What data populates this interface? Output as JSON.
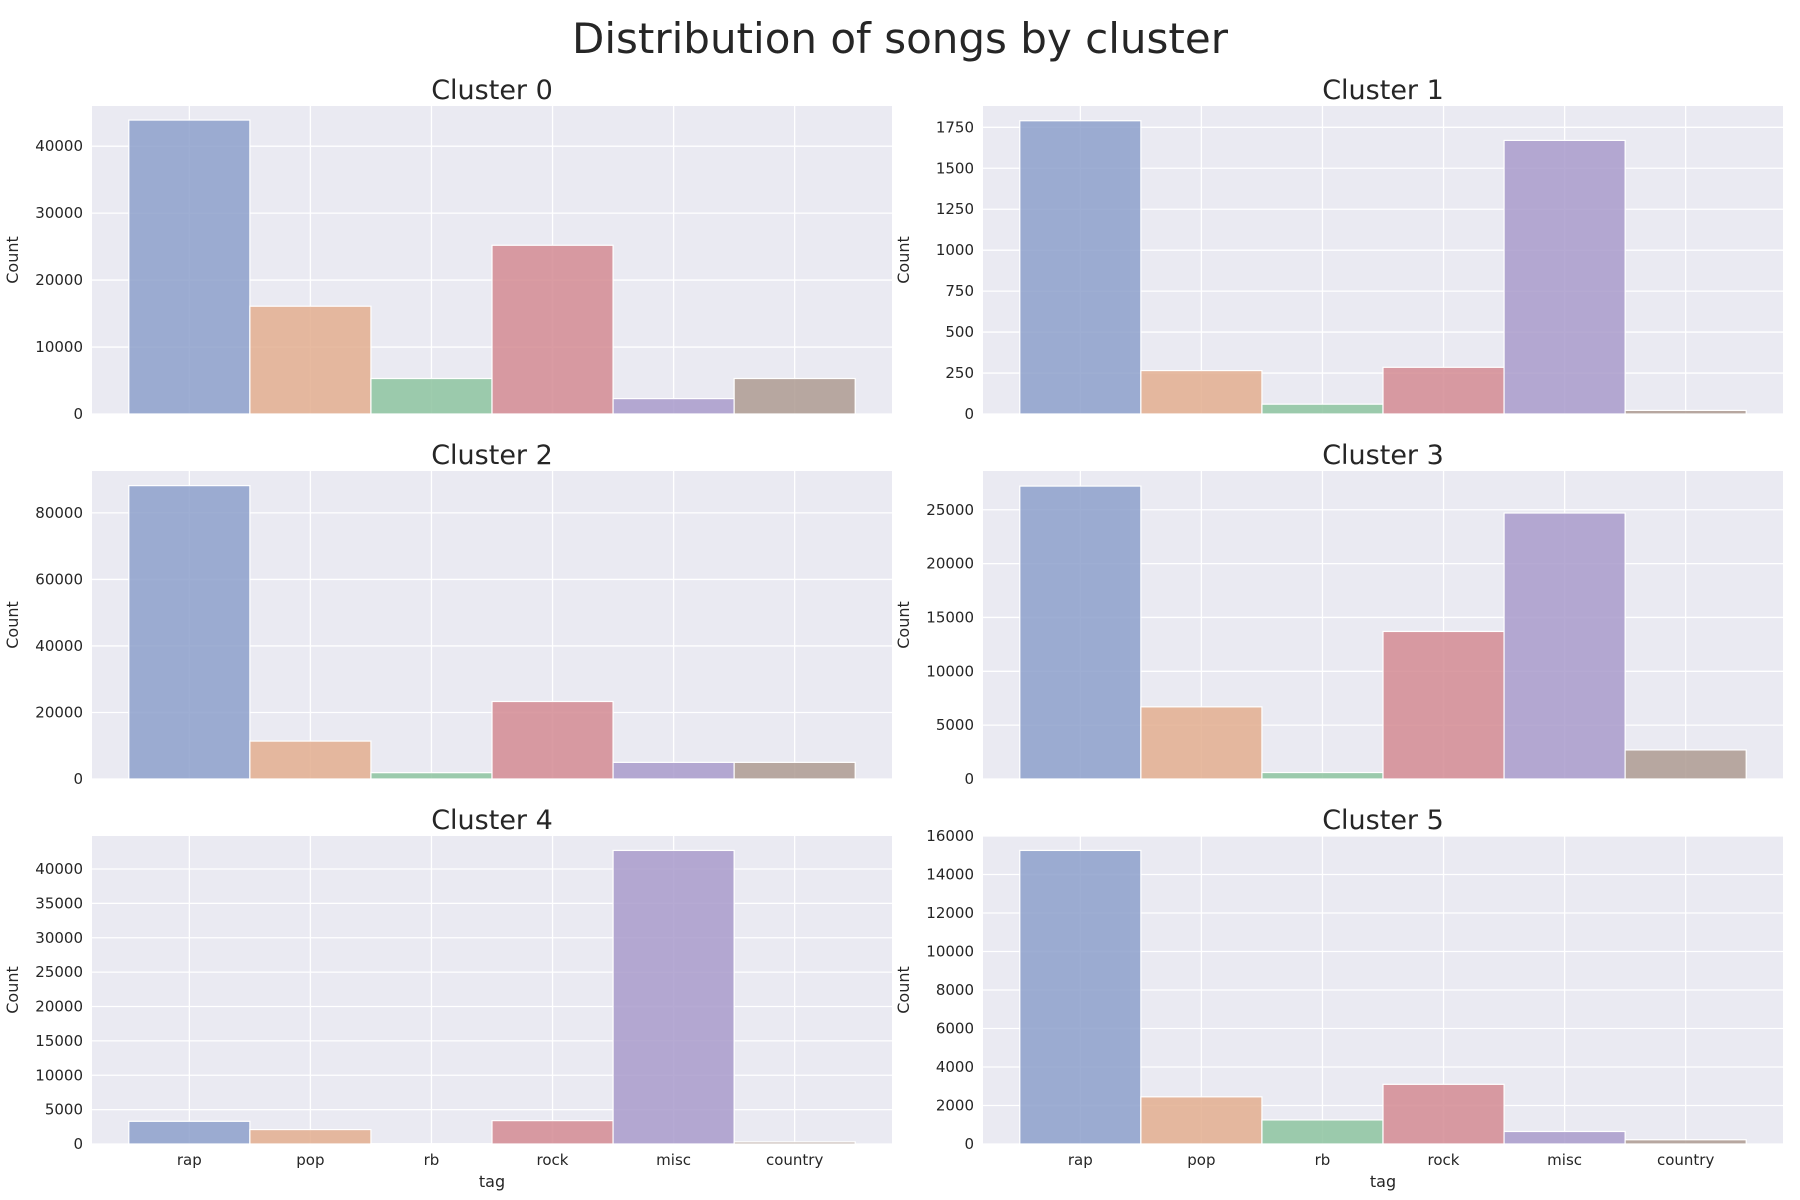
{
  "title": "Distribution of songs by cluster",
  "colors": [
    "#8da0cb",
    "#e3ae8f",
    "#8dc4a0",
    "#d38b93",
    "#a99bcb",
    "#ae9b92"
  ],
  "chart_data": [
    {
      "type": "bar",
      "title": "Cluster 0",
      "categories": [
        "rap",
        "pop",
        "rb",
        "rock",
        "misc",
        "country"
      ],
      "values": [
        43900,
        16100,
        5300,
        25200,
        2300,
        5300
      ],
      "ylabel": "Count",
      "xlabel": "",
      "ylim": [
        0,
        46000
      ],
      "yticks": [
        0,
        10000,
        20000,
        30000,
        40000
      ],
      "show_xticklabels": false
    },
    {
      "type": "bar",
      "title": "Cluster 1",
      "categories": [
        "rap",
        "pop",
        "rb",
        "rock",
        "misc",
        "country"
      ],
      "values": [
        1790,
        265,
        60,
        285,
        1670,
        22
      ],
      "ylabel": "Count",
      "xlabel": "",
      "ylim": [
        0,
        1880
      ],
      "yticks": [
        0,
        250,
        500,
        750,
        1000,
        1250,
        1500,
        1750
      ],
      "show_xticklabels": false
    },
    {
      "type": "bar",
      "title": "Cluster 2",
      "categories": [
        "rap",
        "pop",
        "rb",
        "rock",
        "misc",
        "country"
      ],
      "values": [
        88200,
        11400,
        1900,
        23300,
        5000,
        5000
      ],
      "ylabel": "Count",
      "xlabel": "",
      "ylim": [
        0,
        92600
      ],
      "yticks": [
        0,
        20000,
        40000,
        60000,
        80000
      ],
      "show_xticklabels": false
    },
    {
      "type": "bar",
      "title": "Cluster 3",
      "categories": [
        "rap",
        "pop",
        "rb",
        "rock",
        "misc",
        "country"
      ],
      "values": [
        27200,
        6700,
        600,
        13700,
        24700,
        2700
      ],
      "ylabel": "Count",
      "xlabel": "",
      "ylim": [
        0,
        28600
      ],
      "yticks": [
        0,
        5000,
        10000,
        15000,
        20000,
        25000
      ],
      "show_xticklabels": false
    },
    {
      "type": "bar",
      "title": "Cluster 4",
      "categories": [
        "rap",
        "pop",
        "rb",
        "rock",
        "misc",
        "country"
      ],
      "values": [
        3300,
        2100,
        50,
        3400,
        42700,
        300
      ],
      "ylabel": "Count",
      "xlabel": "tag",
      "ylim": [
        0,
        44800
      ],
      "yticks": [
        0,
        5000,
        10000,
        15000,
        20000,
        25000,
        30000,
        35000,
        40000
      ],
      "show_xticklabels": true
    },
    {
      "type": "bar",
      "title": "Cluster 5",
      "categories": [
        "rap",
        "pop",
        "rb",
        "rock",
        "misc",
        "country"
      ],
      "values": [
        15250,
        2450,
        1250,
        3100,
        650,
        220
      ],
      "ylabel": "Count",
      "xlabel": "tag",
      "ylim": [
        0,
        16000
      ],
      "yticks": [
        0,
        2000,
        4000,
        6000,
        8000,
        10000,
        12000,
        14000,
        16000
      ],
      "show_xticklabels": true
    }
  ]
}
